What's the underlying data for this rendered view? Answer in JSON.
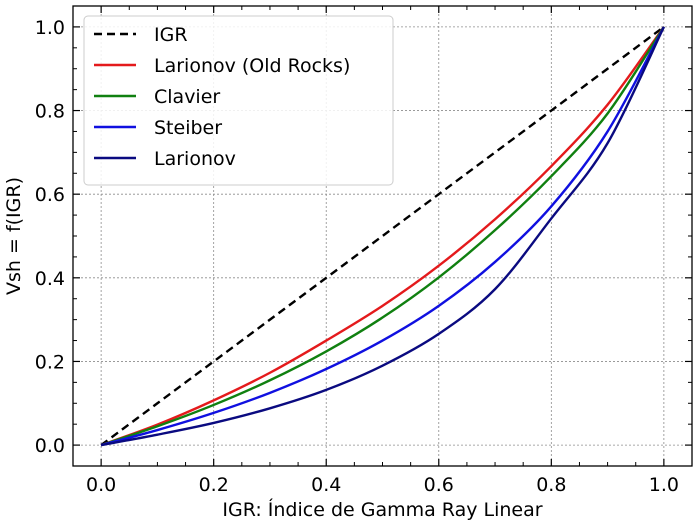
{
  "chart_data": {
    "type": "line",
    "title": "",
    "xlabel": "IGR: Índice de Gamma Ray Linear",
    "ylabel": "Vsh = f(IGR)",
    "xlim": [
      -0.05,
      1.05
    ],
    "ylim": [
      -0.05,
      1.05
    ],
    "xticks": [
      0.0,
      0.2,
      0.4,
      0.6,
      0.8,
      1.0
    ],
    "yticks": [
      0.0,
      0.2,
      0.4,
      0.6,
      0.8,
      1.0
    ],
    "xtick_labels": [
      "0.0",
      "0.2",
      "0.4",
      "0.6",
      "0.8",
      "1.0"
    ],
    "ytick_labels": [
      "0.0",
      "0.2",
      "0.4",
      "0.6",
      "0.8",
      "1.0"
    ],
    "grid": true,
    "legend_position": "top-left",
    "x": [
      0.0,
      0.1,
      0.2,
      0.3,
      0.4,
      0.5,
      0.6,
      0.7,
      0.8,
      0.9,
      1.0
    ],
    "series": [
      {
        "name": "IGR",
        "color": "#000000",
        "dash": "dashed",
        "values": [
          0.0,
          0.1,
          0.2,
          0.3,
          0.4,
          0.5,
          0.6,
          0.7,
          0.8,
          0.9,
          1.0
        ]
      },
      {
        "name": "Larionov (Old Rocks)",
        "color": "#e41a1c",
        "dash": "solid",
        "values": [
          0.0,
          0.049,
          0.107,
          0.173,
          0.25,
          0.333,
          0.429,
          0.54,
          0.667,
          0.814,
          1.0
        ]
      },
      {
        "name": "Clavier",
        "color": "#108010",
        "dash": "solid",
        "values": [
          0.0,
          0.045,
          0.096,
          0.155,
          0.224,
          0.305,
          0.401,
          0.514,
          0.643,
          0.793,
          1.0
        ]
      },
      {
        "name": "Steiber",
        "color": "#1010e0",
        "dash": "solid",
        "values": [
          0.0,
          0.036,
          0.077,
          0.125,
          0.182,
          0.25,
          0.333,
          0.438,
          0.571,
          0.75,
          1.0
        ]
      },
      {
        "name": "Larionov",
        "color": "#0a0a80",
        "dash": "solid",
        "values": [
          0.0,
          0.025,
          0.053,
          0.088,
          0.132,
          0.19,
          0.266,
          0.373,
          0.542,
          0.722,
          1.0
        ]
      }
    ]
  }
}
